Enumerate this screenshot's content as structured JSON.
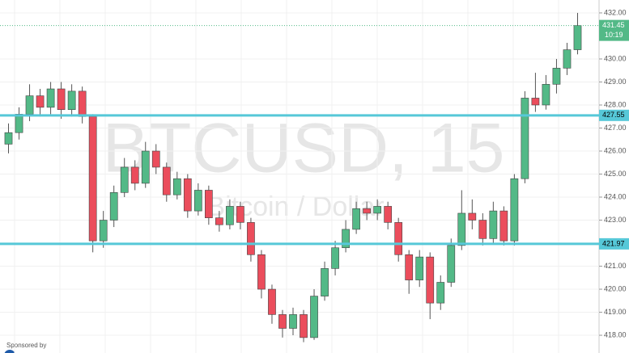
{
  "chart_data": {
    "type": "candlestick",
    "title": "BTCUSD, 15",
    "subtitle": "Bitcoin / Dollar",
    "sponsor": "Sponsored by",
    "open": [
      426.3,
      426.8,
      427.6,
      428.4,
      427.9,
      428.7,
      427.8,
      428.6,
      427.5,
      422.1,
      423.0,
      424.2,
      425.3,
      424.6,
      426.0,
      425.3,
      424.1,
      424.8,
      423.4,
      424.3,
      423.1,
      422.8,
      423.6,
      422.9,
      421.5,
      420.0,
      418.9,
      418.3,
      418.9,
      417.9,
      419.7,
      420.9,
      421.8,
      422.6,
      423.5,
      423.3,
      423.6,
      422.9,
      421.5,
      420.4,
      421.4,
      419.4,
      420.3,
      421.9,
      423.3,
      423.0,
      422.2,
      423.4,
      422.1,
      424.8,
      428.3,
      428.0,
      428.9,
      429.6,
      430.4
    ],
    "high": [
      427.2,
      427.9,
      428.9,
      428.7,
      429.0,
      429.0,
      428.9,
      428.8,
      427.6,
      423.4,
      424.5,
      425.7,
      425.6,
      426.4,
      426.3,
      425.5,
      425.1,
      425.0,
      424.6,
      424.5,
      423.4,
      423.9,
      423.8,
      423.1,
      421.7,
      420.2,
      419.1,
      419.2,
      419.1,
      420.0,
      421.2,
      422.1,
      423.0,
      423.8,
      423.8,
      423.9,
      423.8,
      423.1,
      421.7,
      421.7,
      421.6,
      420.6,
      422.2,
      424.3,
      423.9,
      423.3,
      423.8,
      423.6,
      425.0,
      428.6,
      429.4,
      429.3,
      430.0,
      430.7,
      432.0
    ],
    "low": [
      425.9,
      426.5,
      427.3,
      427.5,
      427.6,
      427.4,
      427.5,
      427.2,
      421.6,
      421.8,
      422.7,
      424.0,
      424.3,
      424.4,
      425.0,
      423.8,
      423.9,
      423.1,
      423.2,
      422.8,
      422.5,
      422.6,
      422.6,
      421.2,
      419.6,
      418.5,
      417.9,
      418.0,
      417.7,
      417.8,
      419.5,
      420.6,
      421.6,
      422.4,
      423.0,
      423.0,
      422.6,
      421.2,
      419.8,
      420.1,
      418.7,
      419.1,
      420.1,
      421.7,
      422.6,
      421.9,
      422.0,
      421.9,
      421.9,
      424.6,
      427.7,
      427.8,
      428.5,
      429.3,
      430.2
    ],
    "close": [
      426.8,
      427.6,
      428.4,
      427.9,
      428.7,
      427.8,
      428.6,
      427.5,
      422.1,
      423.0,
      424.2,
      425.3,
      424.6,
      426.0,
      425.3,
      424.1,
      424.8,
      423.4,
      424.3,
      423.1,
      422.8,
      423.6,
      422.9,
      421.5,
      420.0,
      418.9,
      418.3,
      418.9,
      417.9,
      419.7,
      420.9,
      421.8,
      422.6,
      423.5,
      423.3,
      423.6,
      422.9,
      421.5,
      420.4,
      421.4,
      419.4,
      420.3,
      421.9,
      423.3,
      423.0,
      422.2,
      423.4,
      422.1,
      424.8,
      428.3,
      428.0,
      428.9,
      429.6,
      430.4,
      431.45
    ],
    "up_color": "#53b987",
    "down_color": "#eb4d5c",
    "ylim": [
      417.23,
      432.56
    ],
    "yticks": [
      {
        "value": 418,
        "label": "418.00"
      },
      {
        "value": 419,
        "label": "419.00"
      },
      {
        "value": 420,
        "label": "420.00"
      },
      {
        "value": 421,
        "label": "421.00"
      },
      {
        "value": 422,
        "label": "422.00"
      },
      {
        "value": 423,
        "label": "423.00"
      },
      {
        "value": 424,
        "label": "424.00"
      },
      {
        "value": 425,
        "label": "425.00"
      },
      {
        "value": 426,
        "label": "426.00"
      },
      {
        "value": 427,
        "label": "427.00"
      },
      {
        "value": 428,
        "label": "428.00"
      },
      {
        "value": 429,
        "label": "429.00"
      },
      {
        "value": 430,
        "label": "430.00"
      },
      {
        "value": 432,
        "label": "432.00"
      }
    ],
    "levels": [
      {
        "value": 427.55,
        "label": "427.55"
      },
      {
        "value": 421.97,
        "label": "421.97"
      }
    ],
    "level_color": "#56c8d8",
    "last_price": {
      "value": 431.45,
      "label": "431.45"
    },
    "countdown": "10:19",
    "grid": true
  }
}
